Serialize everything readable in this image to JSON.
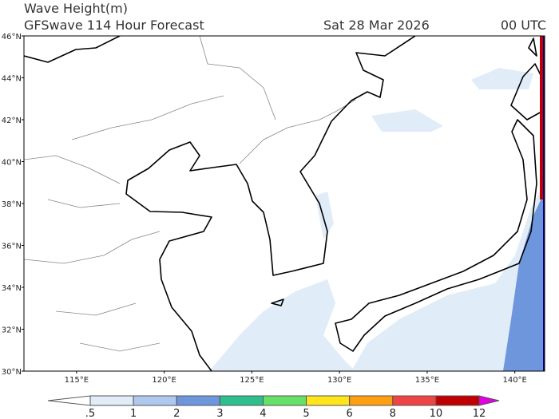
{
  "header": {
    "title": "Wave Height(m)",
    "subtitle": "GFSwave 114 Hour Forecast",
    "date": "Sat 28 Mar 2026",
    "time": "00 UTC"
  },
  "map": {
    "lon_range": [
      112,
      141.7
    ],
    "lat_range": [
      30,
      46
    ],
    "lat_ticks": [
      {
        "value": 46,
        "label": "46°N"
      },
      {
        "value": 44,
        "label": "44°N"
      },
      {
        "value": 42,
        "label": "42°N"
      },
      {
        "value": 40,
        "label": "40°N"
      },
      {
        "value": 38,
        "label": "38°N"
      },
      {
        "value": 36,
        "label": "36°N"
      },
      {
        "value": 34,
        "label": "34°N"
      },
      {
        "value": 32,
        "label": "32°N"
      },
      {
        "value": 30,
        "label": "30°N"
      }
    ],
    "lon_ticks": [
      {
        "value": 115,
        "label": "115°E"
      },
      {
        "value": 120,
        "label": "120°E"
      },
      {
        "value": 125,
        "label": "125°E"
      },
      {
        "value": 130,
        "label": "130°E"
      },
      {
        "value": 135,
        "label": "135°E"
      },
      {
        "value": 140,
        "label": "140°E"
      }
    ]
  },
  "colorbar": {
    "labels": [
      ".5",
      "1",
      "2",
      "3",
      "4",
      "5",
      "6",
      "8",
      "10",
      "12"
    ],
    "colors": [
      "#ffffff",
      "#e0ecf8",
      "#aec8ee",
      "#6e96dc",
      "#2fbf8c",
      "#66e066",
      "#ffe51a",
      "#ff9f10",
      "#ee4444",
      "#c00000",
      "#e000e0"
    ]
  }
}
